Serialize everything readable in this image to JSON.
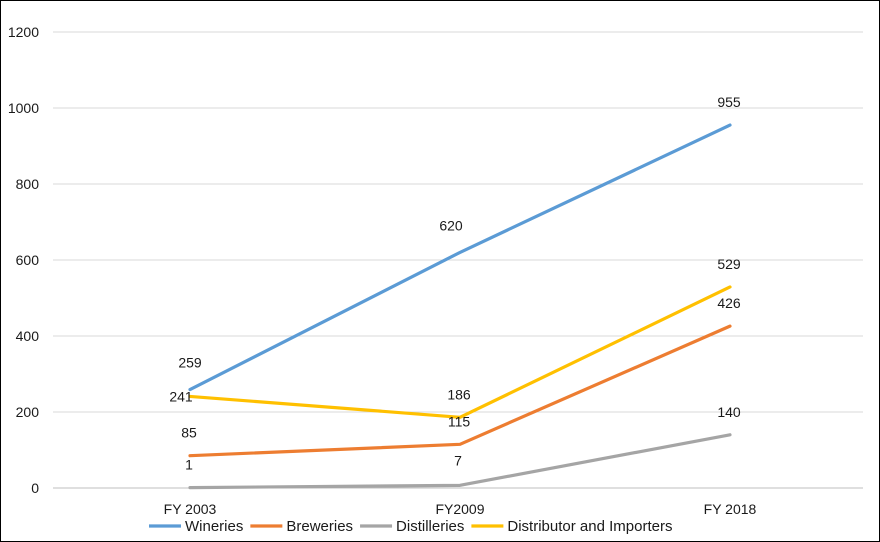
{
  "chart_data": {
    "type": "line",
    "categories": [
      "FY 2003",
      "FY2009",
      "FY 2018"
    ],
    "ylim": [
      0,
      1200
    ],
    "yticks": [
      0,
      200,
      400,
      600,
      800,
      1000,
      1200
    ],
    "grid": true,
    "legend": "bottom",
    "series": [
      {
        "name": "Wineries",
        "values": [
          259,
          620,
          955
        ],
        "color": "#5b9bd5"
      },
      {
        "name": "Breweries",
        "values": [
          85,
          115,
          426
        ],
        "color": "#ed7d31"
      },
      {
        "name": "Distilleries",
        "values": [
          1,
          7,
          140
        ],
        "color": "#a5a5a5"
      },
      {
        "name": "Distributor and Importers",
        "values": [
          241,
          186,
          529
        ],
        "color": "#ffc000"
      }
    ]
  }
}
